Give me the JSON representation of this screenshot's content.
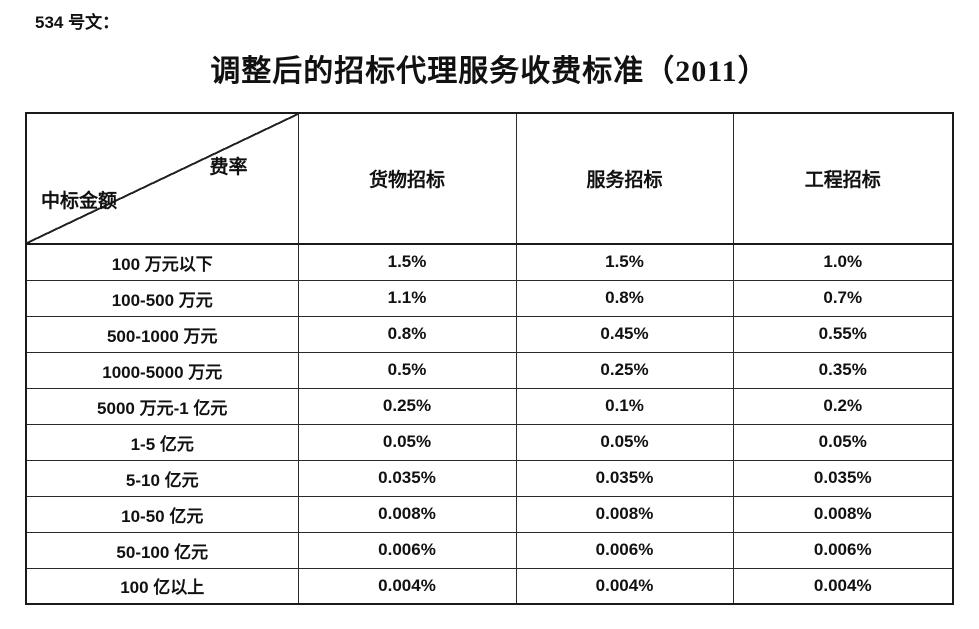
{
  "doc": {
    "ref": "534 号文：",
    "title": "调整后的招标代理服务收费标准（2011）"
  },
  "table": {
    "corner": {
      "top_right": "费率",
      "bottom_left": "中标金额"
    },
    "columns": [
      "货物招标",
      "服务招标",
      "工程招标"
    ],
    "rows": [
      {
        "amount": "100 万元以下",
        "rates": [
          "1.5%",
          "1.5%",
          "1.0%"
        ]
      },
      {
        "amount": "100-500 万元",
        "rates": [
          "1.1%",
          "0.8%",
          "0.7%"
        ]
      },
      {
        "amount": "500-1000 万元",
        "rates": [
          "0.8%",
          "0.45%",
          "0.55%"
        ]
      },
      {
        "amount": "1000-5000 万元",
        "rates": [
          "0.5%",
          "0.25%",
          "0.35%"
        ]
      },
      {
        "amount": "5000 万元-1 亿元",
        "rates": [
          "0.25%",
          "0.1%",
          "0.2%"
        ]
      },
      {
        "amount": "1-5 亿元",
        "rates": [
          "0.05%",
          "0.05%",
          "0.05%"
        ]
      },
      {
        "amount": "5-10 亿元",
        "rates": [
          "0.035%",
          "0.035%",
          "0.035%"
        ]
      },
      {
        "amount": "10-50 亿元",
        "rates": [
          "0.008%",
          "0.008%",
          "0.008%"
        ]
      },
      {
        "amount": "50-100 亿元",
        "rates": [
          "0.006%",
          "0.006%",
          "0.006%"
        ]
      },
      {
        "amount": "100 亿以上",
        "rates": [
          "0.004%",
          "0.004%",
          "0.004%"
        ]
      }
    ]
  },
  "colors": {
    "background": "#ffffff",
    "text": "#111111",
    "border": "#2b2b2b"
  }
}
